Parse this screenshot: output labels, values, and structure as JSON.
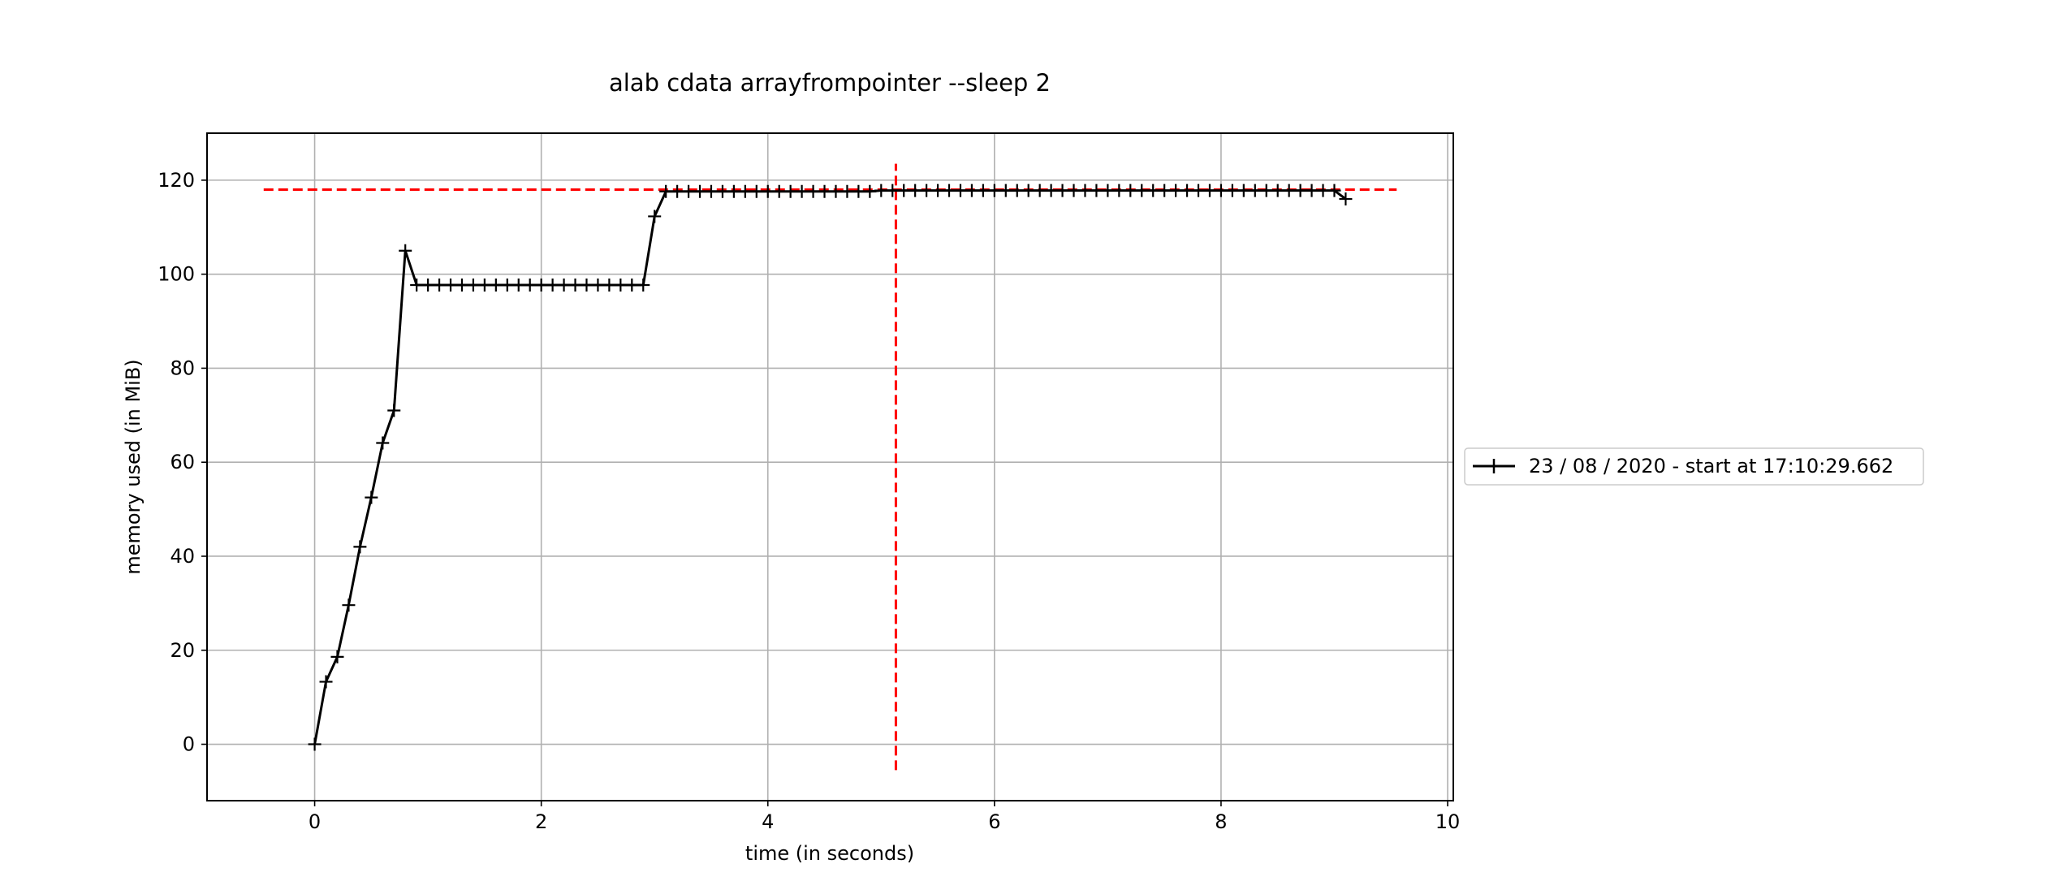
{
  "chart_data": {
    "type": "line",
    "title": "alab cdata arrayfrompointer --sleep 2",
    "xlabel": "time (in seconds)",
    "ylabel": "memory used (in MiB)",
    "xlim": [
      -0.95,
      10.05
    ],
    "ylim": [
      -12,
      130
    ],
    "xticks": [
      0,
      2,
      4,
      6,
      8,
      10
    ],
    "yticks": [
      0,
      20,
      40,
      60,
      80,
      100,
      120
    ],
    "grid": true,
    "legend_position": "right",
    "series": [
      {
        "name": "23 / 08 / 2020 - start at 17:10:29.662",
        "color": "#000000",
        "marker": "plus",
        "x": [
          0.0,
          0.1,
          0.2,
          0.3,
          0.4,
          0.5,
          0.6,
          0.7,
          0.8,
          0.9,
          1.0,
          1.1,
          1.2,
          1.3,
          1.4,
          1.5,
          1.6,
          1.7,
          1.8,
          1.9,
          2.0,
          2.1,
          2.2,
          2.3,
          2.4,
          2.5,
          2.6,
          2.7,
          2.8,
          2.9,
          3.0,
          3.1,
          3.2,
          3.3,
          3.4,
          3.5,
          3.6,
          3.7,
          3.8,
          3.9,
          4.0,
          4.1,
          4.2,
          4.3,
          4.4,
          4.5,
          4.6,
          4.7,
          4.8,
          4.9,
          5.0,
          5.1,
          5.2,
          5.3,
          5.4,
          5.5,
          5.6,
          5.7,
          5.8,
          5.9,
          6.0,
          6.1,
          6.2,
          6.3,
          6.4,
          6.5,
          6.6,
          6.7,
          6.8,
          6.9,
          7.0,
          7.1,
          7.2,
          7.3,
          7.4,
          7.5,
          7.6,
          7.7,
          7.8,
          7.9,
          8.0,
          8.1,
          8.2,
          8.3,
          8.4,
          8.5,
          8.6,
          8.7,
          8.8,
          8.9,
          9.0,
          9.1
        ],
        "values": [
          0.0,
          13.3,
          18.6,
          29.6,
          42.0,
          52.5,
          64.1,
          71.0,
          105.0,
          97.7,
          97.7,
          97.7,
          97.7,
          97.7,
          97.7,
          97.7,
          97.7,
          97.7,
          97.7,
          97.7,
          97.7,
          97.7,
          97.7,
          97.7,
          97.7,
          97.7,
          97.7,
          97.7,
          97.7,
          97.7,
          112.3,
          117.6,
          117.6,
          117.6,
          117.6,
          117.6,
          117.6,
          117.6,
          117.6,
          117.6,
          117.6,
          117.6,
          117.6,
          117.6,
          117.6,
          117.6,
          117.6,
          117.6,
          117.6,
          117.6,
          117.8,
          117.8,
          117.8,
          117.8,
          117.8,
          117.8,
          117.8,
          117.8,
          117.8,
          117.8,
          117.8,
          117.8,
          117.8,
          117.8,
          117.8,
          117.8,
          117.8,
          117.8,
          117.8,
          117.8,
          117.8,
          117.8,
          117.8,
          117.8,
          117.8,
          117.8,
          117.8,
          117.8,
          117.8,
          117.8,
          117.8,
          117.8,
          117.8,
          117.8,
          117.8,
          117.8,
          117.8,
          117.8,
          117.8,
          117.8,
          117.8,
          116.0
        ]
      }
    ],
    "reference_lines": [
      {
        "orientation": "horizontal",
        "y": 118.0,
        "x_from": -0.45,
        "x_to": 9.55,
        "color": "#ff0000",
        "style": "dashed"
      },
      {
        "orientation": "vertical",
        "x": 5.13,
        "y_from": -5.5,
        "y_to": 123.5,
        "color": "#ff0000",
        "style": "dashed"
      }
    ]
  }
}
